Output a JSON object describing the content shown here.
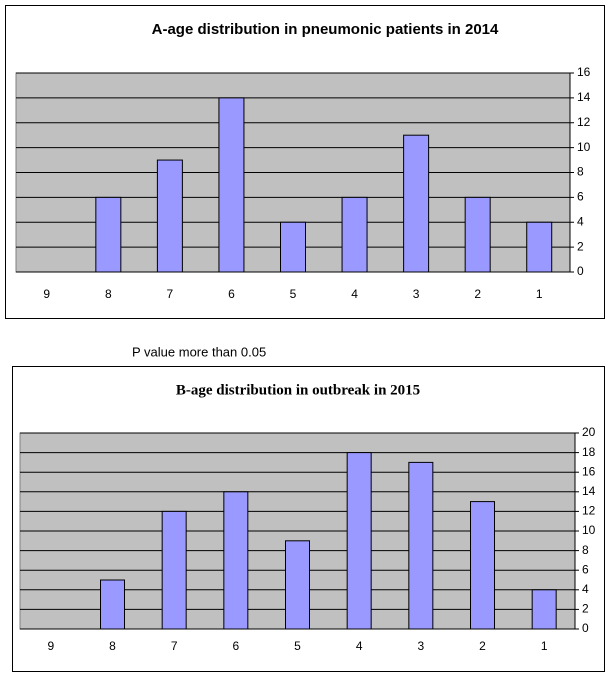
{
  "caption": "P value more than 0.05",
  "chart_data": [
    {
      "type": "bar",
      "title": "A-age distribution in pneumonic patients in 2014",
      "categories": [
        "9",
        "8",
        "7",
        "6",
        "5",
        "4",
        "3",
        "2",
        "1"
      ],
      "values": [
        0,
        6,
        9,
        14,
        4,
        6,
        11,
        6,
        4
      ],
      "color": "#9999ff",
      "ylim": [
        0,
        16
      ],
      "yticks": [
        0,
        2,
        4,
        6,
        8,
        10,
        12,
        14,
        16
      ],
      "grid": true
    },
    {
      "type": "bar",
      "title": "B-age distribution in outbreak in 2015",
      "categories": [
        "9",
        "8",
        "7",
        "6",
        "5",
        "4",
        "3",
        "2",
        "1"
      ],
      "values": [
        0,
        5,
        12,
        14,
        9,
        18,
        17,
        13,
        4
      ],
      "color": "#9999ff",
      "ylim": [
        0,
        20
      ],
      "yticks": [
        0,
        2,
        4,
        6,
        8,
        10,
        12,
        14,
        16,
        18,
        20
      ],
      "grid": true
    }
  ]
}
